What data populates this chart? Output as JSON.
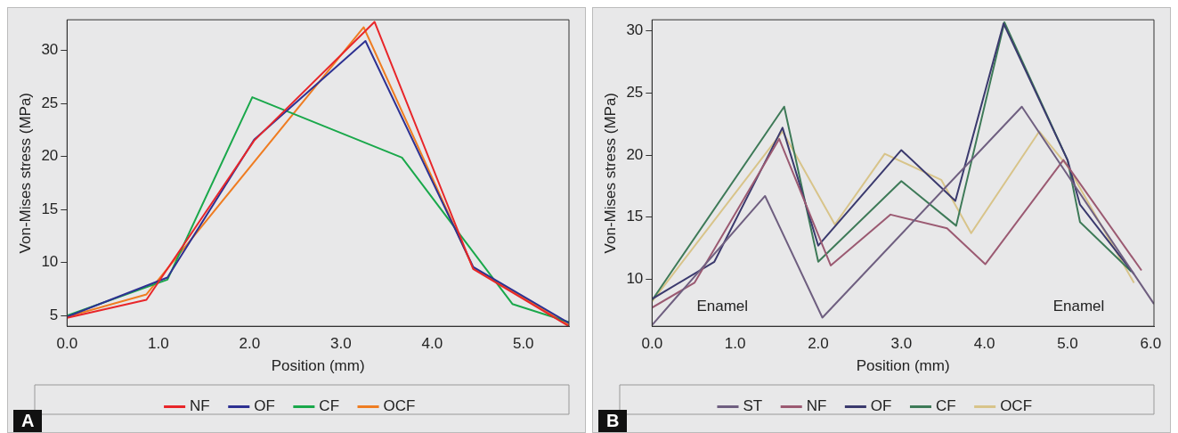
{
  "chart_data": [
    {
      "type": "line",
      "xlabel": "Position (mm)",
      "ylabel": "Von-Mises stress (MPa)",
      "xlim": [
        0,
        5.5
      ],
      "ylim": [
        4,
        32.9
      ],
      "xticks": [
        {
          "value": 0,
          "label": "0.0"
        },
        {
          "value": 1,
          "label": "1.0"
        },
        {
          "value": 2,
          "label": "2.0"
        },
        {
          "value": 3,
          "label": "3.0"
        },
        {
          "value": 4,
          "label": "4.0"
        },
        {
          "value": 5,
          "label": "5.0"
        }
      ],
      "yticks": [
        5,
        10,
        15,
        20,
        25,
        30
      ],
      "legend": "bottom",
      "annotations": [
        "A"
      ],
      "series": [
        {
          "name": "NF",
          "color": "#e8262a",
          "x": [
            0,
            0.87,
            2.05,
            3.37,
            4.45,
            5.5
          ],
          "values": [
            4.8,
            6.5,
            21.5,
            32.7,
            9.4,
            4.0
          ]
        },
        {
          "name": "OF",
          "color": "#2e3192",
          "x": [
            0,
            1.1,
            2.05,
            3.27,
            4.45,
            5.5
          ],
          "values": [
            4.9,
            8.6,
            21.6,
            30.9,
            9.6,
            4.3
          ]
        },
        {
          "name": "CF",
          "color": "#1aa84b",
          "x": [
            0,
            1.1,
            2.03,
            3.67,
            4.88,
            5.5
          ],
          "values": [
            5.0,
            8.4,
            25.6,
            19.9,
            6.1,
            4.4
          ]
        },
        {
          "name": "OCF",
          "color": "#ef7d22",
          "x": [
            0,
            0.87,
            3.25,
            4.45,
            5.5
          ],
          "values": [
            4.9,
            7.0,
            32.2,
            9.5,
            4.1
          ]
        }
      ]
    },
    {
      "type": "line",
      "xlabel": "Position (mm)",
      "ylabel": "Von-Mises stress (MPa)",
      "xlim": [
        0,
        6.04
      ],
      "ylim": [
        6.2,
        30.9
      ],
      "xticks": [
        {
          "value": 0,
          "label": "0.0"
        },
        {
          "value": 1,
          "label": "1.0"
        },
        {
          "value": 2,
          "label": "2.0"
        },
        {
          "value": 3,
          "label": "3.0"
        },
        {
          "value": 4,
          "label": "4.0"
        },
        {
          "value": 5,
          "label": "5.0"
        },
        {
          "value": 6,
          "label": "6.0"
        }
      ],
      "yticks": [
        10,
        15,
        20,
        25,
        30
      ],
      "legend": "bottom",
      "annotations": [
        "B",
        "Enamel",
        "Enamel"
      ],
      "series": [
        {
          "name": "ST",
          "color": "#6f5f80",
          "x": [
            0,
            1.36,
            2.05,
            4.45,
            6.04
          ],
          "values": [
            6.3,
            16.7,
            6.9,
            23.9,
            8.0
          ]
        },
        {
          "name": "NF",
          "color": "#9b5a72",
          "x": [
            0,
            0.51,
            1.53,
            2.15,
            2.87,
            3.55,
            4.01,
            4.95,
            5.89
          ],
          "values": [
            7.7,
            9.7,
            21.3,
            11.1,
            15.2,
            14.1,
            11.2,
            19.6,
            10.7
          ]
        },
        {
          "name": "OF",
          "color": "#3b3a6e",
          "x": [
            0,
            0.75,
            1.57,
            2.0,
            3.0,
            3.65,
            4.23,
            5.0,
            5.15,
            5.8
          ],
          "values": [
            8.4,
            11.4,
            22.2,
            12.7,
            20.4,
            16.3,
            30.6,
            19.6,
            16.0,
            10.4
          ]
        },
        {
          "name": "CF",
          "color": "#3e7a58",
          "x": [
            0,
            1.59,
            2.0,
            3.0,
            3.66,
            4.24,
            5.0,
            5.15,
            5.77
          ],
          "values": [
            8.3,
            23.9,
            11.4,
            17.9,
            14.3,
            30.7,
            19.6,
            14.6,
            10.6
          ]
        },
        {
          "name": "OCF",
          "color": "#d8c48a",
          "x": [
            0,
            1.57,
            2.2,
            2.8,
            3.48,
            3.84,
            4.66,
            5.0,
            5.8
          ],
          "values": [
            8.2,
            21.9,
            14.4,
            20.1,
            18.0,
            13.7,
            21.9,
            19.1,
            9.7
          ]
        }
      ]
    }
  ]
}
